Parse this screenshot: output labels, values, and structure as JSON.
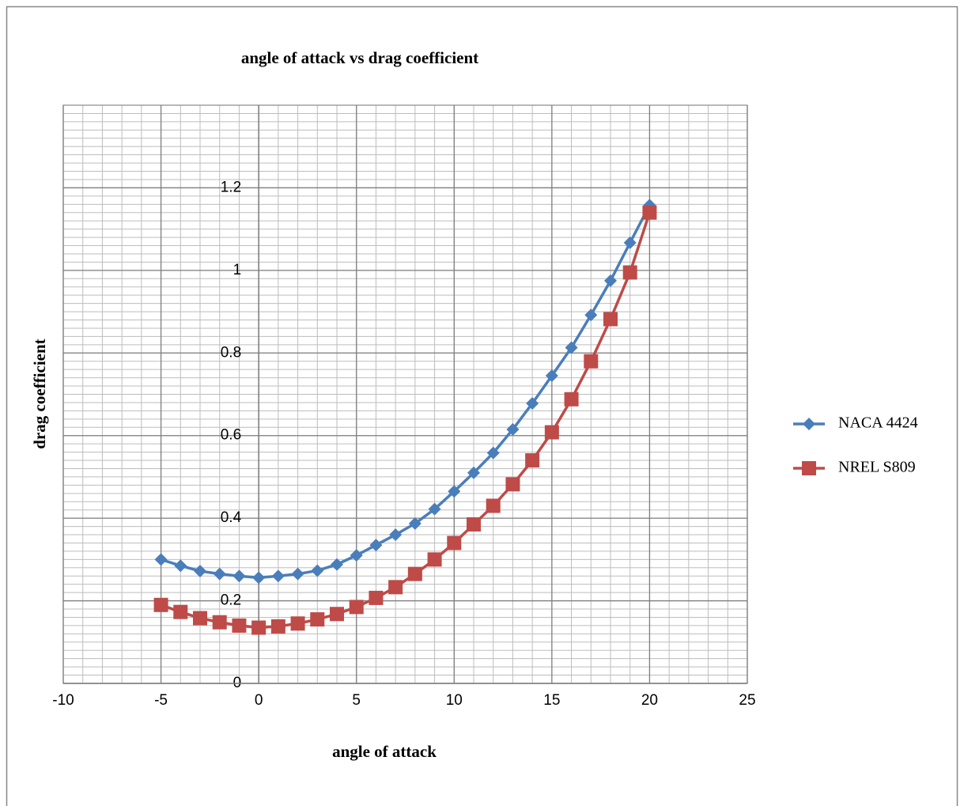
{
  "chart_data": {
    "type": "scatter",
    "title": "angle of attack vs drag coefficient",
    "x_label": "angle of attack",
    "y_label": "drag coefficient",
    "x": [
      -5,
      -4,
      -3,
      -2,
      -1,
      0,
      1,
      2,
      3,
      4,
      5,
      6,
      7,
      8,
      9,
      10,
      11,
      12,
      13,
      14,
      15,
      16,
      17,
      18,
      19,
      20
    ],
    "series": [
      {
        "name": "NACA 4424",
        "color": "#4a7ebb",
        "marker": "diamond",
        "values": [
          0.3,
          0.285,
          0.272,
          0.265,
          0.26,
          0.256,
          0.26,
          0.265,
          0.273,
          0.288,
          0.31,
          0.335,
          0.36,
          0.387,
          0.422,
          0.465,
          0.51,
          0.558,
          0.615,
          0.678,
          0.745,
          0.813,
          0.892,
          0.975,
          1.067,
          1.158
        ]
      },
      {
        "name": "NREL S809",
        "color": "#be4b48",
        "marker": "square",
        "values": [
          0.19,
          0.173,
          0.158,
          0.148,
          0.14,
          0.135,
          0.138,
          0.145,
          0.155,
          0.168,
          0.185,
          0.207,
          0.233,
          0.265,
          0.3,
          0.34,
          0.385,
          0.43,
          0.482,
          0.54,
          0.608,
          0.688,
          0.78,
          0.882,
          0.995,
          1.14
        ]
      }
    ],
    "xlim": [
      -10,
      25
    ],
    "xticks": [
      -10,
      -5,
      0,
      5,
      10,
      15,
      20,
      25
    ],
    "ylim": [
      0,
      1.4
    ],
    "yticks": [
      0,
      0.2,
      0.4,
      0.6,
      0.8,
      1,
      1.2
    ],
    "grid": true,
    "legend": "right"
  }
}
